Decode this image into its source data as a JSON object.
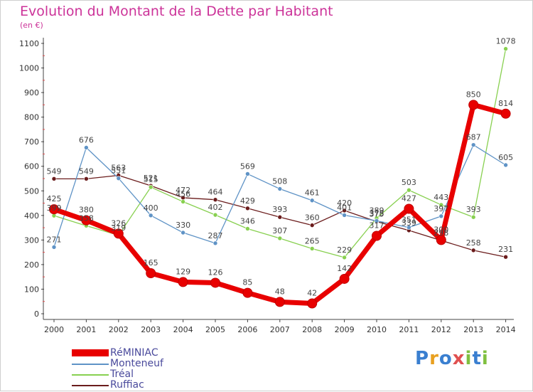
{
  "chart_data": {
    "type": "line",
    "title": "Evolution du Montant de la Dette par Habitant",
    "unit_label": "(en €)",
    "xlabel": "",
    "ylabel": "",
    "ylim": [
      0,
      1100
    ],
    "yticks": [
      0,
      100,
      200,
      300,
      400,
      500,
      600,
      700,
      800,
      900,
      1000,
      1100
    ],
    "categories": [
      "2000",
      "2001",
      "2002",
      "2003",
      "2004",
      "2005",
      "2006",
      "2007",
      "2008",
      "2009",
      "2010",
      "2011",
      "2012",
      "2013",
      "2014"
    ],
    "grid": false,
    "legend_position": "bottom-left",
    "series": [
      {
        "name": "Ruffiac",
        "color": "#6b1c1c",
        "values": [
          549,
          549,
          563,
          521,
          472,
          464,
          429,
          393,
          360,
          420,
          375,
          339,
          298,
          258,
          231
        ]
      },
      {
        "name": "Tréal",
        "color": "#88d050",
        "values": [
          399,
          358,
          319,
          515,
          456,
          402,
          346,
          307,
          265,
          229,
          389,
          503,
          443,
          393,
          1078
        ]
      },
      {
        "name": "Monteneuf",
        "color": "#5f93c6",
        "values": [
          271,
          676,
          551,
          400,
          330,
          287,
          569,
          508,
          461,
          401,
          378,
          351,
          397,
          687,
          605
        ]
      },
      {
        "name": "RéMINIAC",
        "color": "#e80000",
        "values": [
          425,
          380,
          326,
          165,
          129,
          126,
          85,
          48,
          42,
          142,
          317,
          427,
          300,
          850,
          814
        ]
      }
    ]
  },
  "legend": {
    "items": [
      {
        "label": "RéMINIAC",
        "color": "#e80000"
      },
      {
        "label": "Monteneuf",
        "color": "#5f93c6"
      },
      {
        "label": "Tréal",
        "color": "#88d050"
      },
      {
        "label": "Ruffiac",
        "color": "#6b1c1c"
      }
    ]
  },
  "logo": {
    "text": "Proxiti",
    "letters": [
      "P",
      "r",
      "o",
      "x",
      "i",
      "t",
      "i"
    ],
    "colors": [
      "#3a7fd0",
      "#e8a020",
      "#3a7fd0",
      "#e05050",
      "#80c040",
      "#3a7fd0",
      "#80c040"
    ]
  }
}
